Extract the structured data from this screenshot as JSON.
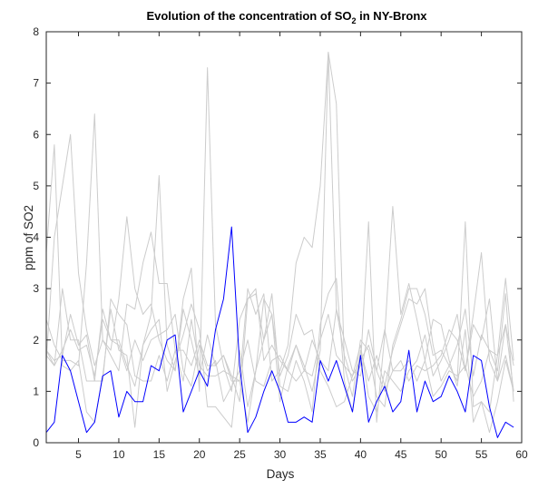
{
  "chart_data": {
    "type": "line",
    "title": "Evolution of the concentration of SO",
    "title_subscript": "2",
    "title_suffix": " in NY-Bronx",
    "xlabel": "Days",
    "ylabel": "ppm of SO2",
    "xlim": [
      1,
      60
    ],
    "ylim": [
      0,
      8
    ],
    "xticks": [
      5,
      10,
      15,
      20,
      25,
      30,
      35,
      40,
      45,
      50,
      55,
      60
    ],
    "yticks": [
      0,
      1,
      2,
      3,
      4,
      5,
      6,
      7,
      8
    ],
    "grid": false,
    "legend": "none",
    "x": [
      1,
      2,
      3,
      4,
      5,
      6,
      7,
      8,
      9,
      10,
      11,
      12,
      13,
      14,
      15,
      16,
      17,
      18,
      19,
      20,
      21,
      22,
      23,
      24,
      25,
      26,
      27,
      28,
      29,
      30,
      31,
      32,
      33,
      34,
      35,
      36,
      37,
      38,
      39,
      40,
      41,
      42,
      43,
      44,
      45,
      46,
      47,
      48,
      49,
      50,
      51,
      52,
      53,
      54,
      55,
      56,
      57,
      58,
      59
    ],
    "series": [
      {
        "color": "#cccccc",
        "values": [
          3.7,
          5.8,
          1.5,
          1.4,
          1.6,
          0.6,
          0.4,
          1.3,
          2.6,
          1.8,
          1.7,
          0.3,
          1.9,
          2.5,
          5.2,
          1.9,
          1.4,
          2.8,
          3.4,
          1.0,
          7.3,
          2.3,
          1.5,
          1.0,
          2.4,
          2.8,
          3.0,
          1.6,
          1.9,
          1.6,
          1.4,
          1.9,
          1.5,
          1.0,
          1.8,
          7.6,
          6.6,
          1.5,
          0.9,
          2.0,
          1.8,
          0.9,
          0.7,
          1.9,
          2.4,
          3.0,
          3.0,
          2.5,
          1.7,
          1.8,
          1.5,
          1.2,
          4.3,
          0.7,
          0.8,
          0.2,
          0.8,
          1.6,
          1.0
        ]
      },
      {
        "color": "#cccccc",
        "values": [
          1.6,
          4.0,
          5.0,
          6.0,
          3.3,
          2.2,
          1.5,
          2.0,
          1.7,
          1.4,
          2.7,
          2.6,
          3.5,
          4.1,
          3.1,
          3.1,
          1.8,
          1.8,
          1.5,
          2.0,
          1.5,
          1.5,
          1.7,
          1.2,
          1.2,
          0.4,
          1.4,
          2.0,
          2.5,
          0.8,
          1.5,
          1.9,
          1.4,
          2.0,
          1.6,
          1.4,
          2.6,
          2.0,
          1.4,
          1.3,
          2.2,
          1.4,
          2.2,
          1.4,
          1.6,
          1.2,
          1.5,
          1.4,
          1.5,
          1.7,
          2.2,
          2.0,
          1.4,
          2.3,
          2.0,
          2.8,
          1.2,
          2.3,
          1.5
        ]
      },
      {
        "color": "#cccccc",
        "values": [
          2.4,
          1.9,
          1.6,
          1.6,
          1.5,
          3.5,
          6.4,
          2.0,
          1.8,
          2.8,
          4.4,
          3.0,
          2.5,
          2.7,
          2.0,
          1.6,
          1.4,
          2.6,
          2.0,
          1.3,
          2.1,
          1.5,
          1.7,
          1.3,
          1.2,
          3.0,
          2.5,
          2.9,
          1.2,
          1.4,
          1.9,
          3.5,
          4.0,
          3.8,
          5.0,
          7.6,
          2.6,
          1.7,
          1.2,
          1.5,
          4.3,
          0.4,
          2.1,
          4.6,
          2.5,
          3.1,
          2.4,
          1.6,
          2.4,
          2.3,
          1.6,
          1.1,
          2.2,
          0.4,
          0.8,
          0.6,
          1.7,
          3.2,
          1.6
        ]
      },
      {
        "color": "#cccccc",
        "values": [
          1.8,
          1.5,
          3.0,
          2.0,
          2.0,
          1.2,
          1.2,
          2.6,
          2.0,
          2.0,
          1.5,
          1.1,
          1.9,
          2.2,
          2.4,
          1.0,
          1.6,
          2.1,
          2.7,
          2.2,
          0.7,
          0.7,
          0.5,
          0.3,
          1.8,
          0.7,
          1.4,
          2.8,
          2.5,
          1.3,
          1.7,
          2.5,
          2.1,
          2.2,
          1.4,
          1.1,
          0.7,
          0.8,
          1.3,
          1.9,
          0.9,
          0.6,
          1.4,
          1.2,
          1.0,
          1.4,
          1.6,
          2.1,
          1.3,
          1.6,
          2.0,
          2.5,
          1.4,
          2.5,
          3.7,
          1.6,
          1.2,
          1.7,
          1.0
        ]
      },
      {
        "color": "#cccccc",
        "values": [
          1.8,
          1.6,
          1.7,
          2.5,
          1.9,
          2.1,
          1.2,
          1.2,
          2.8,
          2.5,
          2.3,
          1.3,
          1.2,
          1.2,
          1.7,
          1.2,
          1.8,
          1.2,
          2.4,
          1.5,
          1.3,
          1.3,
          1.4,
          1.3,
          0.8,
          2.8,
          2.9,
          2.0,
          2.9,
          1.1,
          1.0,
          1.6,
          1.2,
          0.6,
          2.3,
          2.9,
          3.2,
          1.2,
          0.6,
          1.8,
          1.2,
          1.7,
          1.1,
          1.8,
          2.3,
          2.8,
          2.7,
          3.0,
          1.9,
          1.2,
          1.5,
          1.9,
          2.6,
          1.3,
          2.1,
          1.8,
          1.7,
          2.3,
          1.0
        ]
      },
      {
        "color": "#cccccc",
        "values": [
          1.7,
          1.5,
          1.8,
          2.2,
          1.8,
          1.9,
          1.3,
          2.4,
          2.0,
          1.9,
          1.4,
          2.0,
          1.6,
          2.0,
          2.1,
          2.2,
          2.5,
          1.4,
          1.1,
          1.9,
          1.4,
          1.6,
          0.8,
          1.1,
          1.4,
          2.0,
          1.2,
          1.1,
          1.6,
          1.7,
          1.4,
          1.2,
          1.4,
          1.3,
          2.0,
          2.5,
          1.7,
          1.5,
          1.3,
          1.6,
          1.9,
          1.4,
          1.0,
          1.4,
          1.4,
          1.6,
          1.2,
          1.6,
          0.9,
          1.1,
          1.4,
          1.3,
          1.5,
          0.9,
          1.2,
          1.8,
          1.4,
          2.9,
          0.8
        ]
      },
      {
        "color": "#0000ff",
        "values": [
          0.2,
          0.4,
          1.7,
          1.4,
          0.8,
          0.2,
          0.4,
          1.3,
          1.4,
          0.5,
          1.0,
          0.8,
          0.8,
          1.5,
          1.4,
          2.0,
          2.1,
          0.6,
          1.0,
          1.4,
          1.1,
          2.2,
          2.8,
          4.2,
          1.5,
          0.2,
          0.5,
          1.0,
          1.4,
          1.0,
          0.4,
          0.4,
          0.5,
          0.4,
          1.6,
          1.2,
          1.6,
          1.1,
          0.6,
          1.7,
          0.4,
          0.8,
          1.1,
          0.6,
          0.8,
          1.8,
          0.6,
          1.2,
          0.8,
          0.9,
          1.3,
          1.0,
          0.6,
          1.7,
          1.6,
          0.7,
          0.1,
          0.4,
          0.3
        ]
      }
    ]
  }
}
